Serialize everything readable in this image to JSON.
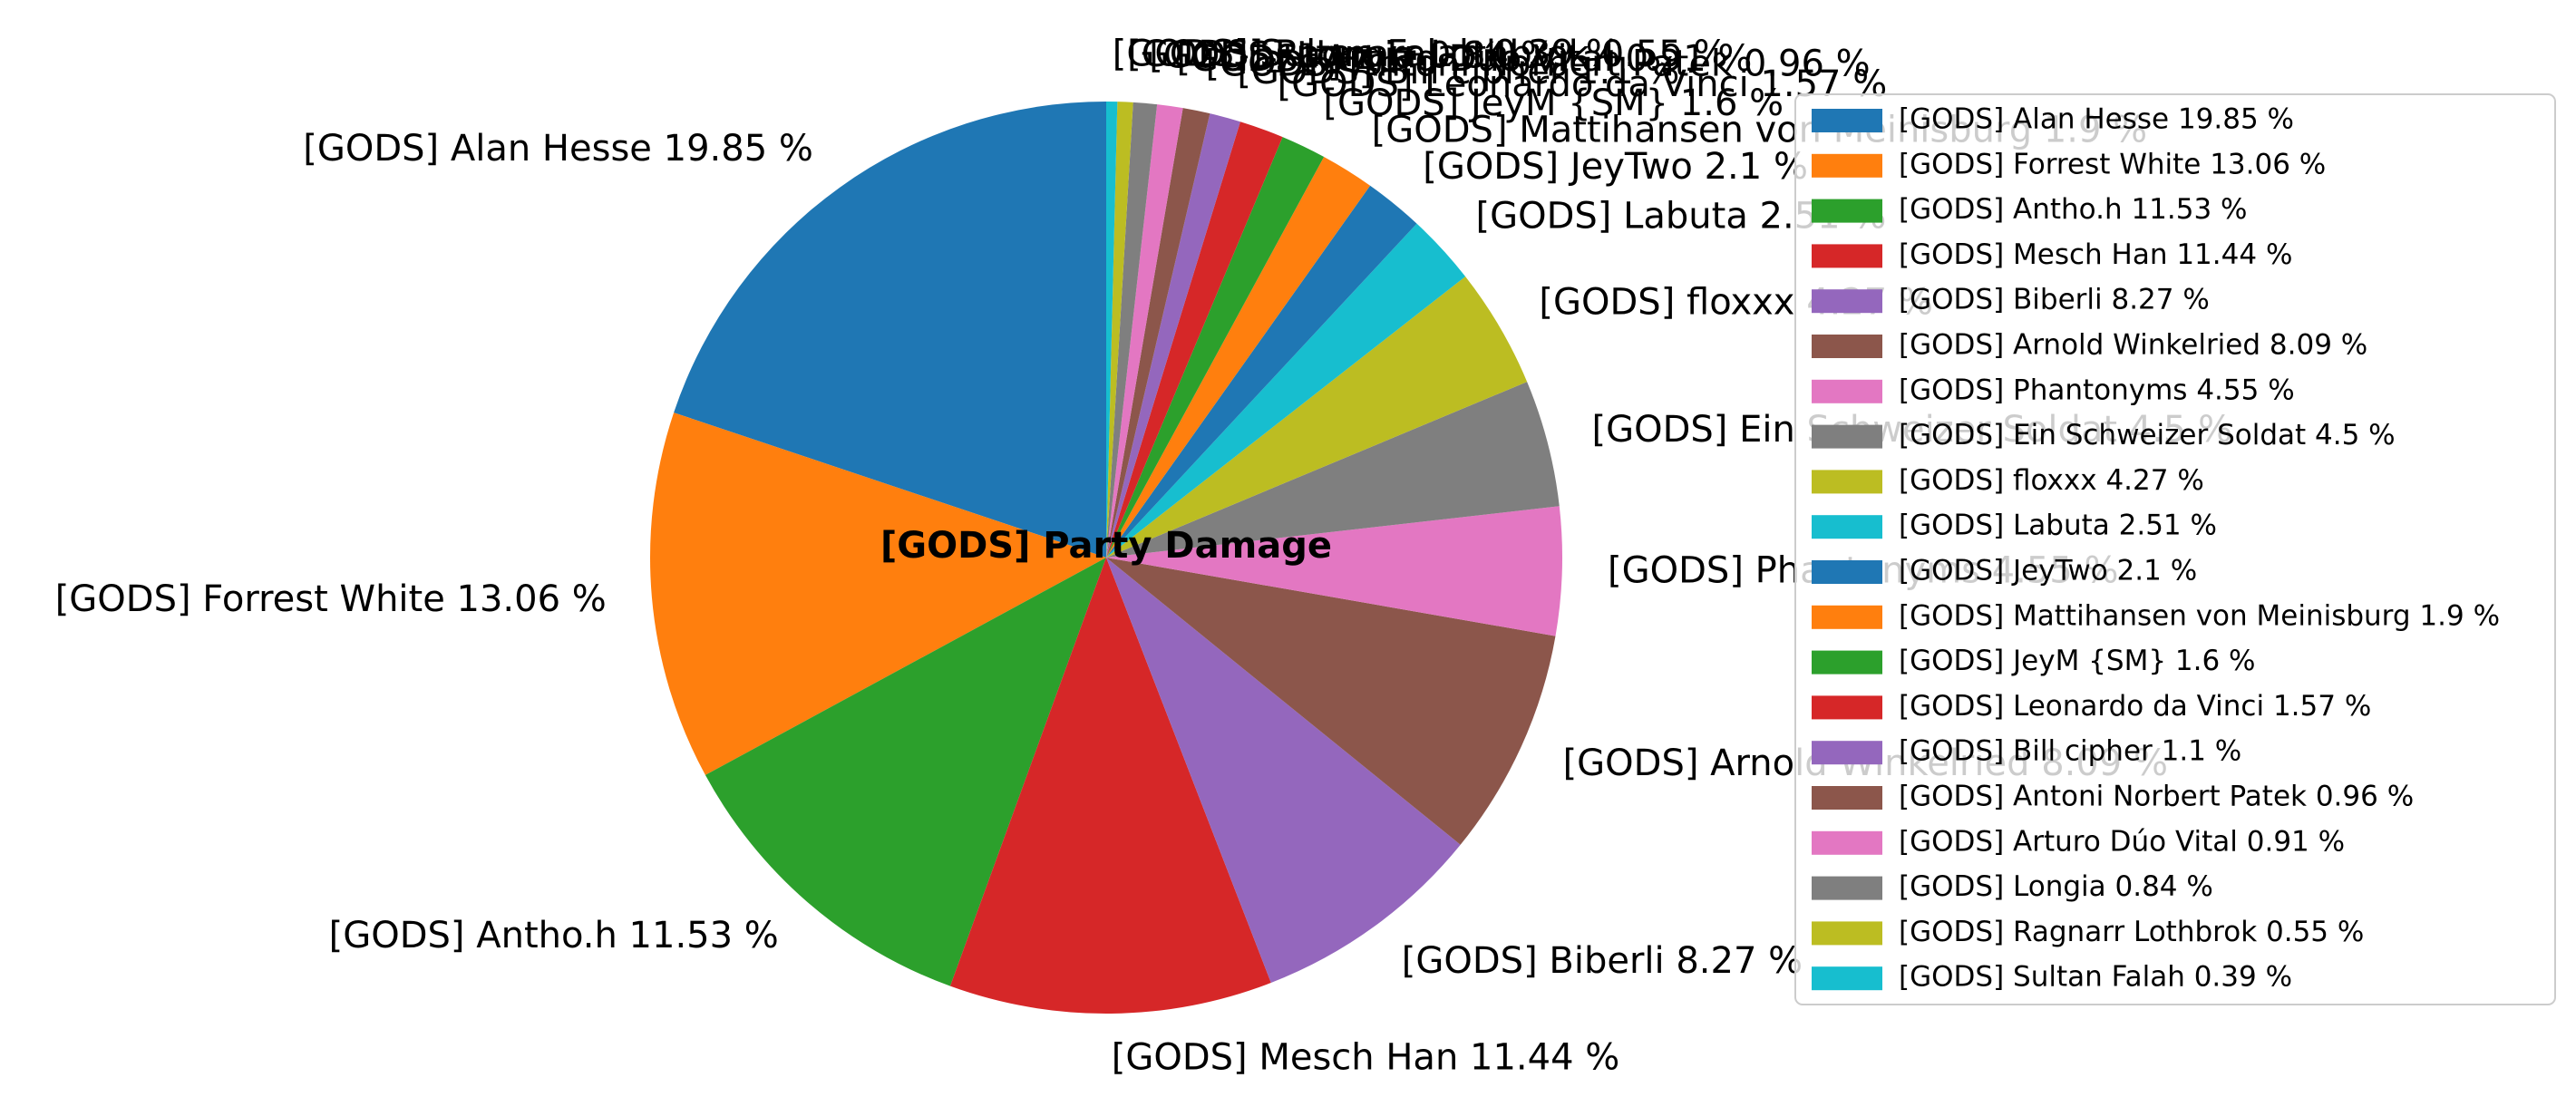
{
  "chart_data": {
    "type": "pie",
    "title": "[GODS] Party Damage",
    "start_angle_deg": 90,
    "direction": "counterclockwise",
    "legend_position": "right",
    "slices": [
      {
        "label": "[GODS] Alan Hesse 19.85 %",
        "value": 19.85,
        "color": "#1f77b4"
      },
      {
        "label": "[GODS] Forrest White 13.06 %",
        "value": 13.06,
        "color": "#ff7f0e"
      },
      {
        "label": "[GODS] Antho.h 11.53 %",
        "value": 11.53,
        "color": "#2ca02c"
      },
      {
        "label": "[GODS] Mesch Han 11.44 %",
        "value": 11.44,
        "color": "#d62728"
      },
      {
        "label": "[GODS] Biberli 8.27 %",
        "value": 8.27,
        "color": "#9467bd"
      },
      {
        "label": "[GODS] Arnold Winkelried 8.09 %",
        "value": 8.09,
        "color": "#8c564b"
      },
      {
        "label": "[GODS] Phantonyms 4.55 %",
        "value": 4.55,
        "color": "#e377c2"
      },
      {
        "label": "[GODS] Ein Schweizer Soldat 4.5 %",
        "value": 4.5,
        "color": "#7f7f7f"
      },
      {
        "label": "[GODS] floxxx 4.27 %",
        "value": 4.27,
        "color": "#bcbd22"
      },
      {
        "label": "[GODS] Labuta 2.51 %",
        "value": 2.51,
        "color": "#17becf"
      },
      {
        "label": "[GODS] JeyTwo 2.1 %",
        "value": 2.1,
        "color": "#1f77b4"
      },
      {
        "label": "[GODS] Mattihansen von Meinisburg 1.9 %",
        "value": 1.9,
        "color": "#ff7f0e"
      },
      {
        "label": "[GODS] JeyM {SM} 1.6 %",
        "value": 1.6,
        "color": "#2ca02c"
      },
      {
        "label": "[GODS] Leonardo da Vinci 1.57 %",
        "value": 1.57,
        "color": "#d62728"
      },
      {
        "label": "[GODS] Bill cipher 1.1 %",
        "value": 1.1,
        "color": "#9467bd"
      },
      {
        "label": "[GODS] Antoni Norbert Patek 0.96 %",
        "value": 0.96,
        "color": "#8c564b"
      },
      {
        "label": "[GODS] Arturo Dúo Vital 0.91 %",
        "value": 0.91,
        "color": "#e377c2"
      },
      {
        "label": "[GODS] Longia 0.84 %",
        "value": 0.84,
        "color": "#7f7f7f"
      },
      {
        "label": "[GODS] Ragnarr Lothbrok 0.55 %",
        "value": 0.55,
        "color": "#bcbd22"
      },
      {
        "label": "[GODS] Sultan Falah 0.39 %",
        "value": 0.39,
        "color": "#17becf"
      }
    ]
  }
}
